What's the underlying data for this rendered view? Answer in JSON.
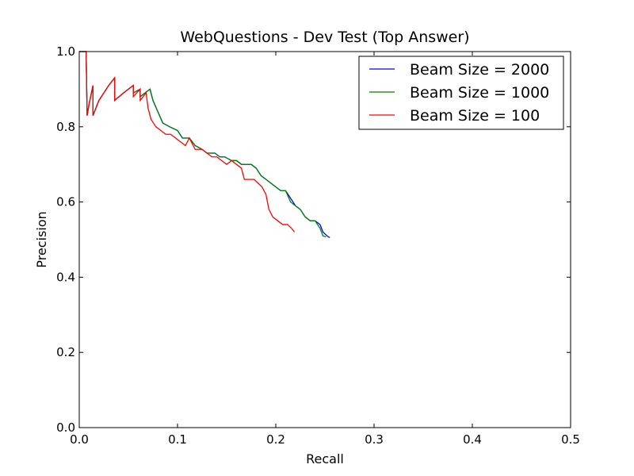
{
  "chart_data": {
    "type": "line",
    "title": "WebQuestions - Dev Test (Top Answer)",
    "xlabel": "Recall",
    "ylabel": "Precision",
    "xlim": [
      0,
      0.5
    ],
    "ylim": [
      0,
      1.0
    ],
    "xticks": [
      0.0,
      0.1,
      0.2,
      0.3,
      0.4,
      0.5
    ],
    "xtick_labels": [
      "0.0",
      "0.1",
      "0.2",
      "0.3",
      "0.4",
      "0.5"
    ],
    "yticks": [
      0.0,
      0.2,
      0.4,
      0.6,
      0.8,
      1.0
    ],
    "ytick_labels": [
      "0.0",
      "0.2",
      "0.4",
      "0.6",
      "0.8",
      "1.0"
    ],
    "grid": false,
    "legend_position": "top-right",
    "series": [
      {
        "name": "Beam Size = 2000",
        "color": "#0000ff",
        "points": [
          [
            0.0,
            1.0
          ],
          [
            0.007,
            1.0
          ],
          [
            0.008,
            0.83
          ],
          [
            0.01,
            0.86
          ],
          [
            0.014,
            0.91
          ],
          [
            0.014,
            0.83
          ],
          [
            0.02,
            0.87
          ],
          [
            0.03,
            0.91
          ],
          [
            0.036,
            0.93
          ],
          [
            0.036,
            0.87
          ],
          [
            0.045,
            0.89
          ],
          [
            0.055,
            0.91
          ],
          [
            0.055,
            0.89
          ],
          [
            0.062,
            0.9
          ],
          [
            0.062,
            0.88
          ],
          [
            0.072,
            0.9
          ],
          [
            0.075,
            0.87
          ],
          [
            0.08,
            0.84
          ],
          [
            0.085,
            0.81
          ],
          [
            0.092,
            0.8
          ],
          [
            0.1,
            0.79
          ],
          [
            0.105,
            0.77
          ],
          [
            0.112,
            0.77
          ],
          [
            0.118,
            0.75
          ],
          [
            0.125,
            0.74
          ],
          [
            0.13,
            0.73
          ],
          [
            0.138,
            0.73
          ],
          [
            0.143,
            0.72
          ],
          [
            0.148,
            0.72
          ],
          [
            0.155,
            0.71
          ],
          [
            0.16,
            0.71
          ],
          [
            0.165,
            0.7
          ],
          [
            0.17,
            0.7
          ],
          [
            0.175,
            0.7
          ],
          [
            0.18,
            0.69
          ],
          [
            0.185,
            0.67
          ],
          [
            0.19,
            0.66
          ],
          [
            0.195,
            0.65
          ],
          [
            0.2,
            0.64
          ],
          [
            0.205,
            0.63
          ],
          [
            0.21,
            0.63
          ],
          [
            0.215,
            0.61
          ],
          [
            0.22,
            0.59
          ],
          [
            0.225,
            0.58
          ],
          [
            0.23,
            0.56
          ],
          [
            0.235,
            0.55
          ],
          [
            0.24,
            0.55
          ],
          [
            0.245,
            0.54
          ],
          [
            0.248,
            0.52
          ],
          [
            0.252,
            0.51
          ],
          [
            0.255,
            0.505
          ]
        ]
      },
      {
        "name": "Beam Size = 1000",
        "color": "#008000",
        "points": [
          [
            0.0,
            1.0
          ],
          [
            0.007,
            1.0
          ],
          [
            0.008,
            0.83
          ],
          [
            0.01,
            0.86
          ],
          [
            0.014,
            0.91
          ],
          [
            0.014,
            0.83
          ],
          [
            0.02,
            0.87
          ],
          [
            0.03,
            0.91
          ],
          [
            0.036,
            0.93
          ],
          [
            0.036,
            0.87
          ],
          [
            0.045,
            0.89
          ],
          [
            0.055,
            0.91
          ],
          [
            0.055,
            0.89
          ],
          [
            0.062,
            0.9
          ],
          [
            0.062,
            0.88
          ],
          [
            0.072,
            0.9
          ],
          [
            0.075,
            0.87
          ],
          [
            0.08,
            0.84
          ],
          [
            0.085,
            0.81
          ],
          [
            0.092,
            0.8
          ],
          [
            0.1,
            0.79
          ],
          [
            0.105,
            0.77
          ],
          [
            0.112,
            0.77
          ],
          [
            0.118,
            0.75
          ],
          [
            0.125,
            0.74
          ],
          [
            0.13,
            0.73
          ],
          [
            0.138,
            0.73
          ],
          [
            0.143,
            0.72
          ],
          [
            0.148,
            0.72
          ],
          [
            0.155,
            0.71
          ],
          [
            0.16,
            0.71
          ],
          [
            0.165,
            0.7
          ],
          [
            0.17,
            0.7
          ],
          [
            0.175,
            0.7
          ],
          [
            0.18,
            0.69
          ],
          [
            0.185,
            0.67
          ],
          [
            0.19,
            0.66
          ],
          [
            0.195,
            0.65
          ],
          [
            0.2,
            0.64
          ],
          [
            0.205,
            0.63
          ],
          [
            0.21,
            0.63
          ],
          [
            0.215,
            0.6
          ],
          [
            0.22,
            0.59
          ],
          [
            0.225,
            0.58
          ],
          [
            0.23,
            0.56
          ],
          [
            0.235,
            0.55
          ],
          [
            0.24,
            0.55
          ],
          [
            0.245,
            0.53
          ],
          [
            0.248,
            0.51
          ],
          [
            0.251,
            0.507
          ]
        ]
      },
      {
        "name": "Beam Size = 100",
        "color": "#ff0000",
        "points": [
          [
            0.0,
            1.0
          ],
          [
            0.007,
            1.0
          ],
          [
            0.008,
            0.83
          ],
          [
            0.01,
            0.86
          ],
          [
            0.014,
            0.91
          ],
          [
            0.014,
            0.83
          ],
          [
            0.02,
            0.87
          ],
          [
            0.03,
            0.91
          ],
          [
            0.036,
            0.93
          ],
          [
            0.036,
            0.87
          ],
          [
            0.045,
            0.89
          ],
          [
            0.055,
            0.91
          ],
          [
            0.055,
            0.88
          ],
          [
            0.062,
            0.9
          ],
          [
            0.062,
            0.87
          ],
          [
            0.068,
            0.89
          ],
          [
            0.07,
            0.85
          ],
          [
            0.073,
            0.82
          ],
          [
            0.078,
            0.8
          ],
          [
            0.083,
            0.79
          ],
          [
            0.088,
            0.78
          ],
          [
            0.093,
            0.78
          ],
          [
            0.098,
            0.77
          ],
          [
            0.103,
            0.76
          ],
          [
            0.108,
            0.75
          ],
          [
            0.112,
            0.77
          ],
          [
            0.118,
            0.74
          ],
          [
            0.125,
            0.74
          ],
          [
            0.13,
            0.73
          ],
          [
            0.135,
            0.72
          ],
          [
            0.14,
            0.72
          ],
          [
            0.145,
            0.71
          ],
          [
            0.15,
            0.7
          ],
          [
            0.155,
            0.71
          ],
          [
            0.16,
            0.7
          ],
          [
            0.165,
            0.69
          ],
          [
            0.168,
            0.66
          ],
          [
            0.172,
            0.66
          ],
          [
            0.178,
            0.66
          ],
          [
            0.182,
            0.65
          ],
          [
            0.186,
            0.64
          ],
          [
            0.19,
            0.62
          ],
          [
            0.193,
            0.58
          ],
          [
            0.197,
            0.56
          ],
          [
            0.202,
            0.55
          ],
          [
            0.207,
            0.54
          ],
          [
            0.212,
            0.54
          ],
          [
            0.216,
            0.53
          ],
          [
            0.219,
            0.52
          ]
        ]
      }
    ]
  }
}
